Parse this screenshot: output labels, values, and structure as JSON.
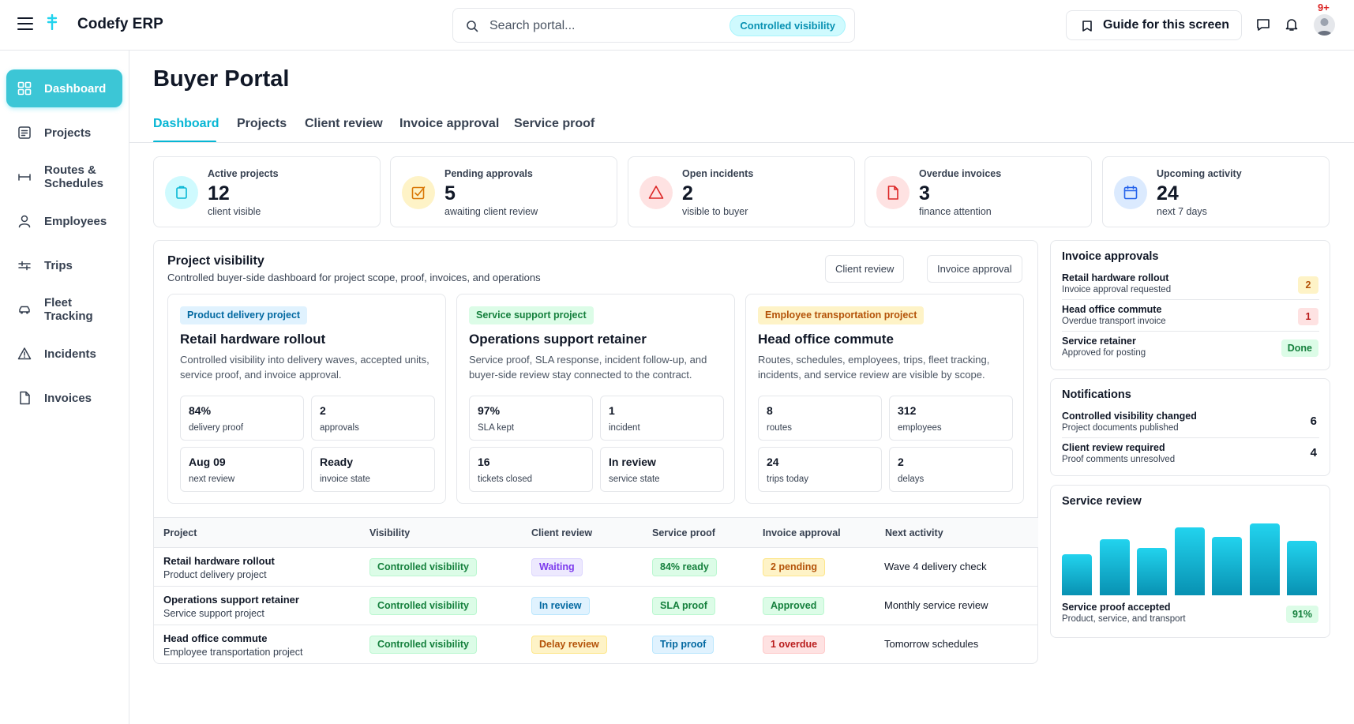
{
  "app": {
    "title": "Codefy ERP"
  },
  "search": {
    "placeholder": "Search portal...",
    "chip": "Controlled visibility"
  },
  "header": {
    "guide_label": "Guide for this screen",
    "notification_badge": "9+"
  },
  "sidebar": {
    "items": [
      {
        "label": "Dashboard",
        "icon": "grid-icon",
        "active": true
      },
      {
        "label": "Projects",
        "icon": "document-list-icon"
      },
      {
        "label": "Routes & Schedules",
        "icon": "route-icon"
      },
      {
        "label": "Employees",
        "icon": "user-icon"
      },
      {
        "label": "Trips",
        "icon": "sliders-icon"
      },
      {
        "label": "Fleet Tracking",
        "icon": "car-icon"
      },
      {
        "label": "Incidents",
        "icon": "warning-icon"
      },
      {
        "label": "Invoices",
        "icon": "file-icon"
      }
    ]
  },
  "page": {
    "title": "Buyer Portal",
    "tabs": [
      "Dashboard",
      "Projects",
      "Client review",
      "Invoice approval",
      "Service proof"
    ]
  },
  "kpis": [
    {
      "label": "Active projects",
      "value": "12",
      "sub": "client visible",
      "icon": "clipboard-icon",
      "color": "#06b6d4"
    },
    {
      "label": "Pending approvals",
      "value": "5",
      "sub": "awaiting client review",
      "icon": "check-square-icon",
      "color": "#d97706"
    },
    {
      "label": "Open incidents",
      "value": "2",
      "sub": "visible to buyer",
      "icon": "warning-icon",
      "color": "#dc2626"
    },
    {
      "label": "Overdue invoices",
      "value": "3",
      "sub": "finance attention",
      "icon": "file-icon",
      "color": "#dc2626"
    },
    {
      "label": "Upcoming activity",
      "value": "24",
      "sub": "next 7 days",
      "icon": "calendar-icon",
      "color": "#2563eb"
    }
  ],
  "visibility": {
    "title": "Project visibility",
    "subtitle": "Controlled buyer-side dashboard for project scope, proof, invoices, and operations",
    "buttons": [
      "Client review",
      "Invoice approval"
    ],
    "cards": [
      {
        "chip": "Product delivery project",
        "title": "Retail hardware rollout",
        "desc": "Controlled visibility into delivery waves, accepted units, service proof, and invoice approval.",
        "metrics": [
          {
            "value": "84%",
            "label": "delivery proof"
          },
          {
            "value": "2",
            "label": "approvals"
          },
          {
            "value": "Aug 09",
            "label": "next review"
          },
          {
            "value": "Ready",
            "label": "invoice state"
          }
        ]
      },
      {
        "chip": "Service support project",
        "title": "Operations support retainer",
        "desc": "Service proof, SLA response, incident follow-up, and buyer-side review stay connected to the contract.",
        "metrics": [
          {
            "value": "97%",
            "label": "SLA kept"
          },
          {
            "value": "1",
            "label": "incident"
          },
          {
            "value": "16",
            "label": "tickets closed"
          },
          {
            "value": "In review",
            "label": "service state"
          }
        ]
      },
      {
        "chip": "Employee transportation project",
        "title": "Head office commute",
        "desc": "Routes, schedules, employees, trips, fleet tracking, incidents, and service review are visible by scope.",
        "metrics": [
          {
            "value": "8",
            "label": "routes"
          },
          {
            "value": "312",
            "label": "employees"
          },
          {
            "value": "24",
            "label": "trips today"
          },
          {
            "value": "2",
            "label": "delays"
          }
        ]
      }
    ]
  },
  "table": {
    "headers": [
      "Project",
      "Visibility",
      "Client review",
      "Service proof",
      "Invoice approval",
      "Next activity"
    ],
    "rows": [
      {
        "name": "Retail hardware rollout",
        "type": "Product delivery project",
        "visibility": "Controlled visibility",
        "review": "Waiting",
        "proof": "84% ready",
        "invoice": "2 pending",
        "next": "Wave 4 delivery check"
      },
      {
        "name": "Operations support retainer",
        "type": "Service support project",
        "visibility": "Controlled visibility",
        "review": "In review",
        "proof": "SLA proof",
        "invoice": "Approved",
        "next": "Monthly service review"
      },
      {
        "name": "Head office commute",
        "type": "Employee transportation project",
        "visibility": "Controlled visibility",
        "review": "Delay review",
        "proof": "Trip proof",
        "invoice": "1 overdue",
        "next": "Tomorrow schedules"
      }
    ]
  },
  "invoice_approvals": {
    "title": "Invoice approvals",
    "items": [
      {
        "name": "Retail hardware rollout",
        "sub": "Invoice approval requested",
        "badge": "2"
      },
      {
        "name": "Head office commute",
        "sub": "Overdue transport invoice",
        "badge": "1"
      },
      {
        "name": "Service retainer",
        "sub": "Approved for posting",
        "badge": "Done"
      }
    ]
  },
  "notifications": {
    "title": "Notifications",
    "items": [
      {
        "name": "Controlled visibility changed",
        "sub": "Project documents published",
        "count": "6"
      },
      {
        "name": "Client review required",
        "sub": "Proof comments unresolved",
        "count": "4"
      }
    ]
  },
  "service_review": {
    "title": "Service review",
    "footer_title": "Service proof accepted",
    "footer_sub": "Product, service, and transport",
    "badge": "91%",
    "bars": [
      0.55,
      0.75,
      0.64,
      0.92,
      0.79,
      0.97,
      0.73
    ]
  }
}
